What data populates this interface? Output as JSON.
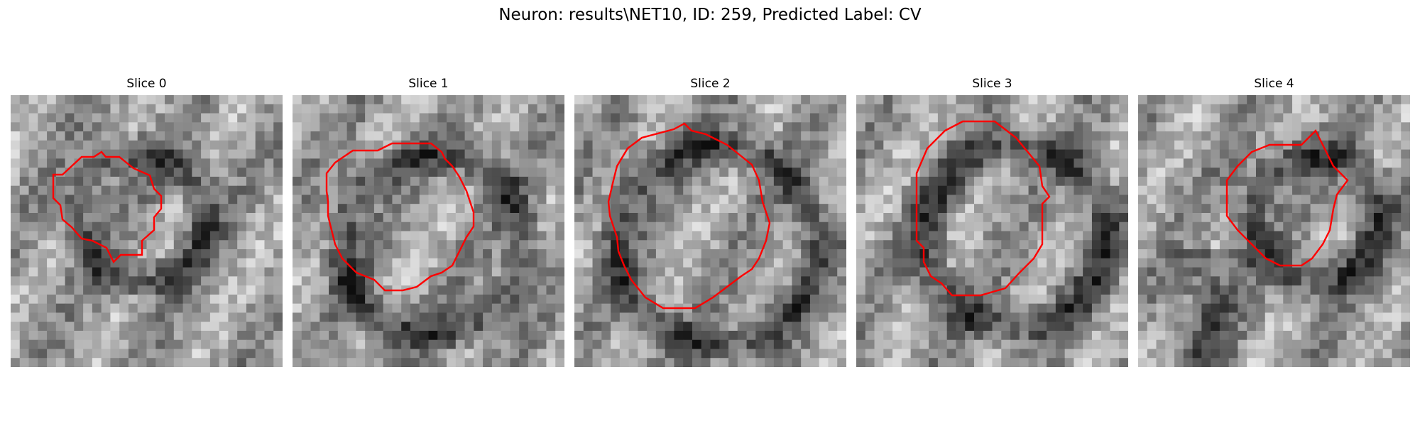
{
  "figure": {
    "title": "Neuron: results\\NET10, ID: 259, Predicted Label: CV"
  },
  "panels": [
    {
      "title": "Slice 0"
    },
    {
      "title": "Slice 1"
    },
    {
      "title": "Slice 2"
    },
    {
      "title": "Slice 3"
    },
    {
      "title": "Slice 4"
    }
  ],
  "colors": {
    "contour": "#ff0000",
    "background": "#ffffff"
  }
}
